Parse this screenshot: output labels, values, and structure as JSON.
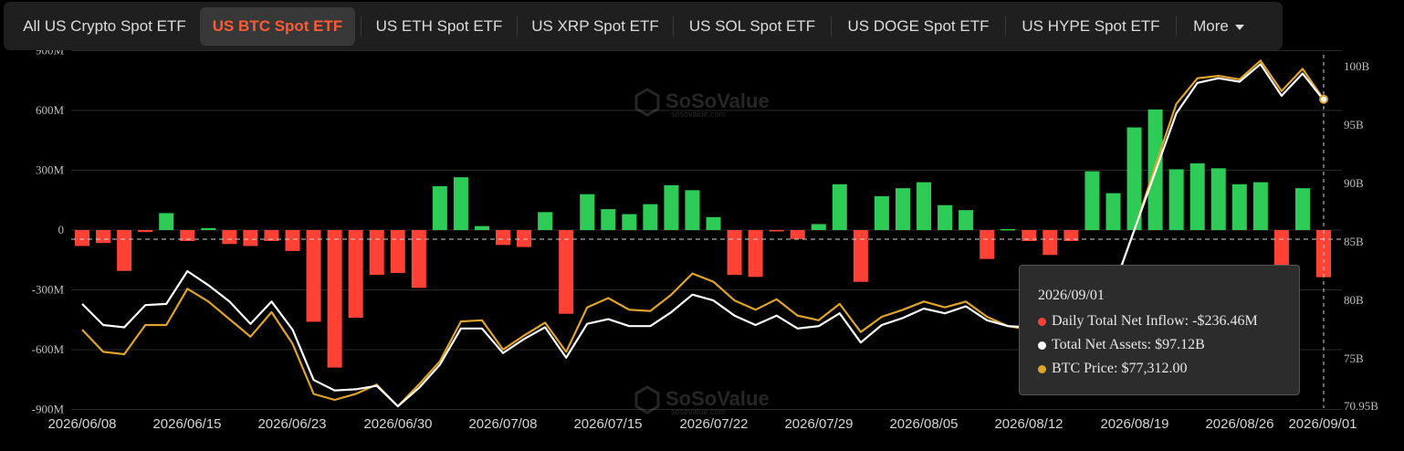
{
  "tabs": {
    "items": [
      {
        "label": "All US Crypto Spot ETF",
        "active": false
      },
      {
        "label": "US BTC Spot ETF",
        "active": true
      },
      {
        "label": "US ETH Spot ETF",
        "active": false
      },
      {
        "label": "US XRP Spot ETF",
        "active": false
      },
      {
        "label": "US SOL Spot ETF",
        "active": false
      },
      {
        "label": "US DOGE Spot ETF",
        "active": false
      },
      {
        "label": "US HYPE Spot ETF",
        "active": false
      }
    ],
    "more_label": "More"
  },
  "watermark": {
    "brand": "SoSoValue",
    "url": "sosovalue.com"
  },
  "tooltip": {
    "date": "2026/09/01",
    "rows": [
      {
        "label": "Daily Total Net Inflow: -$236.46M",
        "color": "#ff4136"
      },
      {
        "label": "Total Net Assets: $97.12B",
        "color": "#ffffff"
      },
      {
        "label": "BTC Price: $77,312.00",
        "color": "#e0a42b"
      }
    ]
  },
  "colors": {
    "inflow_pos": "#2ecc56",
    "inflow_neg": "#ff4136",
    "assets": "#ffffff",
    "price": "#e0a42b",
    "grid": "#2a2a2a"
  },
  "chart_data": {
    "type": "bar",
    "x_ticks": [
      "2026/06/08",
      "2026/06/15",
      "2026/06/23",
      "2026/06/30",
      "2026/07/08",
      "2026/07/15",
      "2026/07/22",
      "2026/07/29",
      "2026/08/05",
      "2026/08/12",
      "2026/08/19",
      "2026/08/26",
      "2026/09/01"
    ],
    "left_axis": {
      "ticks": [
        "900M",
        "600M",
        "300M",
        "0",
        "-300M",
        "-600M",
        "-900M"
      ],
      "range": [
        -900,
        900
      ],
      "unit": "M"
    },
    "right_axis": {
      "ticks": [
        "100B",
        "95B",
        "90B",
        "85B",
        "80B",
        "75B",
        "70.95B"
      ],
      "range": [
        70.95,
        100.5
      ],
      "unit": "B"
    },
    "grid": true,
    "series": [
      {
        "name": "Daily Total Net Inflow",
        "kind": "bar",
        "values": [
          -80,
          -65,
          -205,
          -10,
          85,
          -55,
          10,
          -70,
          -80,
          -55,
          -105,
          -460,
          -690,
          -440,
          -225,
          -215,
          -290,
          220,
          265,
          20,
          -75,
          -85,
          90,
          -420,
          180,
          105,
          80,
          130,
          225,
          200,
          65,
          -225,
          -235,
          -5,
          -45,
          30,
          230,
          -260,
          170,
          210,
          240,
          125,
          100,
          -145,
          5,
          -55,
          -125,
          -55,
          295,
          185,
          515,
          605,
          305,
          335,
          310,
          230,
          240,
          -180,
          210,
          -236.46
        ]
      },
      {
        "name": "Total Net Assets",
        "kind": "line",
        "values": [
          79.7,
          77.9,
          77.7,
          79.6,
          79.7,
          82.5,
          81.3,
          79.9,
          78.0,
          79.9,
          77.5,
          73.2,
          72.3,
          72.4,
          72.7,
          70.95,
          72.5,
          74.5,
          77.6,
          77.6,
          75.5,
          76.7,
          77.7,
          75.1,
          78.0,
          78.4,
          77.8,
          77.8,
          79.0,
          80.5,
          80.0,
          78.7,
          77.9,
          78.7,
          77.6,
          77.8,
          78.9,
          76.4,
          77.9,
          78.5,
          79.3,
          78.9,
          79.5,
          78.3,
          77.8,
          77.7,
          77.3,
          77.0,
          78.0,
          81.0,
          86.0,
          91.0,
          96.0,
          98.6,
          99.0,
          98.7,
          100.2,
          97.5,
          99.4,
          97.12
        ]
      },
      {
        "name": "BTC Price",
        "kind": "line",
        "values": [
          77.5,
          75.6,
          75.4,
          77.9,
          77.9,
          81.0,
          79.9,
          78.4,
          76.9,
          79.0,
          76.3,
          72.0,
          71.5,
          72.0,
          72.8,
          70.95,
          72.8,
          74.8,
          78.2,
          78.3,
          75.8,
          77.0,
          78.1,
          75.6,
          79.4,
          80.2,
          79.2,
          79.1,
          80.5,
          82.3,
          81.6,
          80.0,
          79.2,
          80.1,
          78.7,
          78.3,
          79.7,
          77.3,
          78.6,
          79.2,
          79.9,
          79.4,
          79.9,
          78.6,
          77.8,
          77.5,
          77.2,
          77.0,
          78.0,
          81.0,
          86.0,
          91.5,
          96.8,
          99.0,
          99.2,
          98.9,
          100.5,
          97.9,
          99.8,
          97.2
        ]
      }
    ]
  }
}
